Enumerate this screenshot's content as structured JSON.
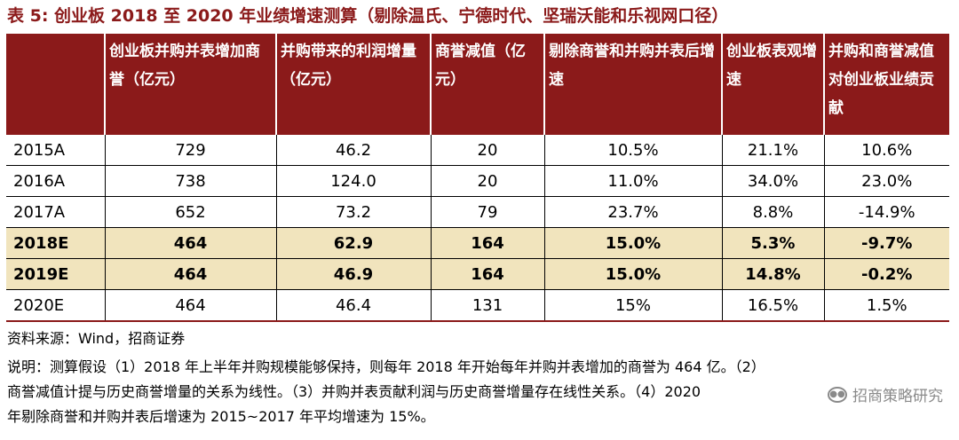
{
  "title": "表 5: 创业板 2018 至 2020 年业绩增速测算（剔除温氏、宁德时代、坚瑞沃能和乐视网口径）",
  "table": {
    "headers": [
      "",
      "创业板并购并表增加商誉（亿元）",
      "并购带来的利润增量（亿元）",
      "商誉减值（亿元）",
      "剔除商誉和并购并表后增速",
      "创业板表观增速",
      "并购和商誉减值对创业板业绩贡献"
    ],
    "rows": [
      [
        "2015A",
        "729",
        "46.2",
        "20",
        "10.5%",
        "21.1%",
        "10.6%"
      ],
      [
        "2016A",
        "738",
        "124.0",
        "20",
        "11.0%",
        "34.0%",
        "23.0%"
      ],
      [
        "2017A",
        "652",
        "73.2",
        "79",
        "23.7%",
        "8.8%",
        "-14.9%"
      ],
      [
        "2018E",
        "464",
        "62.9",
        "164",
        "15.0%",
        "5.3%",
        "-9.7%"
      ],
      [
        "2019E",
        "464",
        "46.9",
        "164",
        "15.0%",
        "14.8%",
        "-0.2%"
      ],
      [
        "2020E",
        "464",
        "46.4",
        "131",
        "15%",
        "16.5%",
        "1.5%"
      ]
    ]
  },
  "source": "资料来源：Wind，招商证券",
  "notes": [
    "说明：测算假设（1）2018 年上半年并购规模能够保持，则每年 2018 年开始每年并购并表增加的商誉为 464 亿。（2）",
    "商誉减值计提与历史商誉增量的关系为线性。（3）并购并表贡献利润与历史商誉增量存在线性关系。（4）2020",
    "年剔除商誉和并购并表后增速为 2015~2017 年平均增速为 15%。"
  ],
  "watermark": "招商策略研究",
  "colors": {
    "header_bg": "#8b1a1a",
    "highlight_row_bg": "#f1e4bd"
  }
}
